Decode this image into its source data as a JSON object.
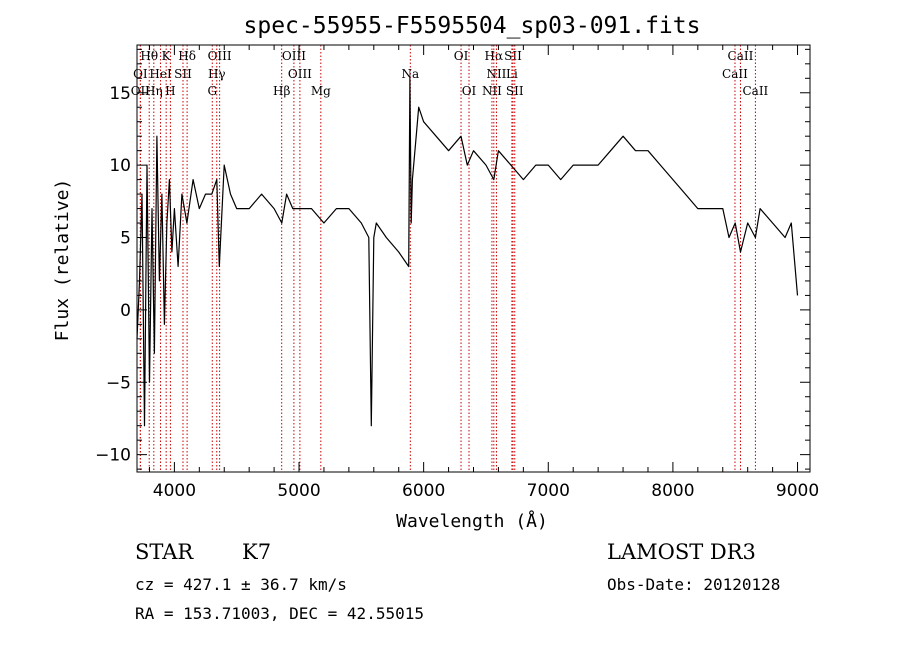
{
  "chart_data": {
    "type": "line",
    "title": "spec-55955-F5595504_sp03-091.fits",
    "xlabel": "Wavelength (Å)",
    "ylabel": "Flux (relative)",
    "xlim": [
      3700,
      9100
    ],
    "ylim": [
      -11.2,
      18.3
    ],
    "xticks": [
      4000,
      5000,
      6000,
      7000,
      8000,
      9000
    ],
    "yticks": [
      -10,
      -5,
      0,
      5,
      10,
      15
    ],
    "spectrum": {
      "name": "flux",
      "x": [
        3700,
        3720,
        3740,
        3760,
        3780,
        3800,
        3820,
        3840,
        3860,
        3880,
        3900,
        3920,
        3940,
        3960,
        3980,
        4000,
        4030,
        4060,
        4100,
        4150,
        4200,
        4250,
        4300,
        4340,
        4360,
        4400,
        4450,
        4500,
        4600,
        4700,
        4800,
        4862,
        4900,
        4950,
        5000,
        5100,
        5200,
        5300,
        5400,
        5500,
        5560,
        5580,
        5600,
        5620,
        5700,
        5800,
        5880,
        5890,
        5900,
        5910,
        5940,
        5960,
        6000,
        6100,
        6200,
        6300,
        6350,
        6400,
        6500,
        6563,
        6600,
        6700,
        6800,
        6900,
        7000,
        7100,
        7200,
        7300,
        7400,
        7500,
        7600,
        7700,
        7800,
        7900,
        8000,
        8100,
        8200,
        8300,
        8400,
        8450,
        8500,
        8542,
        8600,
        8662,
        8700,
        8800,
        8900,
        8950,
        9000
      ],
      "y": [
        -2,
        2,
        8,
        -8,
        10,
        -5,
        7,
        -3,
        12,
        2,
        8,
        -1,
        6,
        9,
        4,
        7,
        3,
        8,
        6,
        9,
        7,
        8,
        8,
        9,
        3,
        10,
        8,
        7,
        7,
        8,
        7,
        6,
        8,
        7,
        7,
        7,
        6,
        7,
        7,
        6,
        5,
        -8,
        5,
        6,
        5,
        4,
        3,
        16,
        6,
        9,
        12,
        14,
        13,
        12,
        11,
        12,
        10,
        11,
        10,
        9,
        11,
        10,
        9,
        10,
        10,
        9,
        10,
        10,
        10,
        11,
        12,
        11,
        11,
        10,
        9,
        8,
        7,
        7,
        7,
        5,
        6,
        4,
        6,
        5,
        7,
        6,
        5,
        6,
        1
      ]
    },
    "line_markers": [
      {
        "label": "Hθ",
        "x": 3798,
        "row": 1
      },
      {
        "label": "K",
        "x": 3934,
        "row": 1
      },
      {
        "label": "Hδ",
        "x": 4102,
        "row": 1
      },
      {
        "label": "OIII",
        "x": 4363,
        "row": 1
      },
      {
        "label": "OIII",
        "x": 4959,
        "row": 1
      },
      {
        "label": "OI",
        "x": 6300,
        "row": 1
      },
      {
        "label": "Hα",
        "x": 6563,
        "row": 1
      },
      {
        "label": "SII",
        "x": 6717,
        "row": 1
      },
      {
        "label": "CaII",
        "x": 8542,
        "row": 1
      },
      {
        "label": "OI",
        "x": 3727,
        "row": 2
      },
      {
        "label": "HeI",
        "x": 3889,
        "row": 2
      },
      {
        "label": "SII",
        "x": 4069,
        "row": 2
      },
      {
        "label": "Hγ",
        "x": 4340,
        "row": 2
      },
      {
        "label": "OIII",
        "x": 5007,
        "row": 2
      },
      {
        "label": "Na",
        "x": 5893,
        "row": 2
      },
      {
        "label": "NII",
        "x": 6584,
        "row": 2
      },
      {
        "label": "Li",
        "x": 6708,
        "row": 2
      },
      {
        "label": "CaII",
        "x": 8498,
        "row": 2
      },
      {
        "label": "OII",
        "x": 3727,
        "row": 3
      },
      {
        "label": "Hη",
        "x": 3835,
        "row": 3
      },
      {
        "label": "H",
        "x": 3968,
        "row": 3
      },
      {
        "label": "G",
        "x": 4304,
        "row": 3
      },
      {
        "label": "Hβ",
        "x": 4861,
        "row": 3
      },
      {
        "label": "Mg",
        "x": 5175,
        "row": 3
      },
      {
        "label": "OI",
        "x": 6364,
        "row": 3
      },
      {
        "label": "NII",
        "x": 6548,
        "row": 3
      },
      {
        "label": "SII",
        "x": 6731,
        "row": 3
      },
      {
        "label": "CaII",
        "x": 8662,
        "row": 3
      }
    ]
  },
  "info": {
    "class_label": "STAR",
    "subclass_label": "K7",
    "survey": "LAMOST DR3",
    "cz": "cz = 427.1 ± 36.7 km/s",
    "obs_date": "Obs-Date: 20120128",
    "coords": "RA = 153.71003, DEC =  42.55015"
  },
  "colors": {
    "axis": "#000000",
    "spectrum": "#000000",
    "marker": "#cc0000",
    "background": "#ffffff"
  }
}
